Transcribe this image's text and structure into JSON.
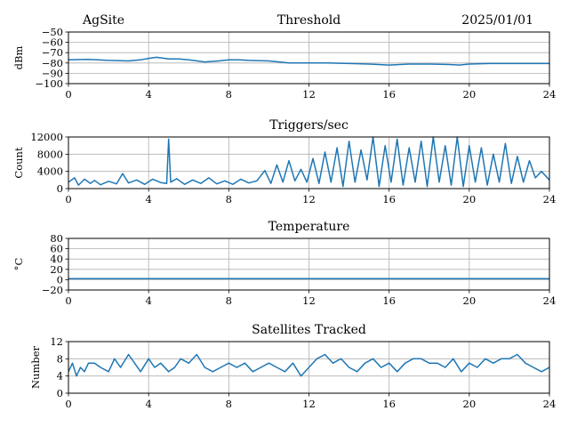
{
  "header": {
    "site": "AgSite",
    "date": "2025/01/01"
  },
  "colors": {
    "series": "#1f77b4",
    "grid": "#b0b0b0"
  },
  "chart_data": [
    {
      "type": "line",
      "title": "Threshold",
      "ylabel": "dBm",
      "xlabel": "",
      "xlim": [
        0,
        24
      ],
      "ylim": [
        -100,
        -50
      ],
      "xticks": [
        0,
        4,
        8,
        12,
        16,
        20,
        24
      ],
      "yticks": [
        -100,
        -90,
        -80,
        -70,
        -60,
        -50
      ],
      "ytick_labels": [
        "−100",
        "−90",
        "−80",
        "−70",
        "−60",
        "−50"
      ],
      "grid": true,
      "series": [
        {
          "x": [
            0,
            1,
            2,
            3,
            3.6,
            4,
            4.4,
            5,
            5.5,
            6,
            6.8,
            7.5,
            8,
            8.5,
            9,
            10,
            10.5,
            11,
            12,
            13,
            14,
            15,
            16,
            17,
            18,
            19,
            19.5,
            20,
            21,
            22,
            23,
            24
          ],
          "y": [
            -77,
            -76.5,
            -77.5,
            -78,
            -77,
            -75.5,
            -74.5,
            -76,
            -76,
            -77,
            -79,
            -78,
            -77,
            -77,
            -77.5,
            -78,
            -79,
            -80,
            -80,
            -80,
            -80.5,
            -81,
            -82,
            -81,
            -81,
            -81.5,
            -82,
            -81,
            -80.5,
            -80.5,
            -80.5,
            -80.5
          ]
        }
      ]
    },
    {
      "type": "line",
      "title": "Triggers/sec",
      "ylabel": "Count",
      "xlabel": "",
      "xlim": [
        0,
        24
      ],
      "ylim": [
        0,
        12000
      ],
      "xticks": [
        0,
        4,
        8,
        12,
        16,
        20,
        24
      ],
      "yticks": [
        0,
        4000,
        8000,
        12000
      ],
      "ytick_labels": [
        "0",
        "4000",
        "8000",
        "12000"
      ],
      "grid": true,
      "series": [
        {
          "x": [
            0,
            0.3,
            0.5,
            0.8,
            1.1,
            1.3,
            1.6,
            2,
            2.4,
            2.7,
            3,
            3.4,
            3.8,
            4.2,
            4.6,
            4.9,
            5,
            5.1,
            5.4,
            5.8,
            6.2,
            6.6,
            7,
            7.4,
            7.8,
            8.2,
            8.6,
            9,
            9.4,
            9.8,
            10.1,
            10.4,
            10.7,
            11,
            11.3,
            11.6,
            11.9,
            12.2,
            12.5,
            12.8,
            13.1,
            13.4,
            13.7,
            14,
            14.3,
            14.6,
            14.9,
            15.2,
            15.5,
            15.8,
            16.1,
            16.4,
            16.7,
            17,
            17.3,
            17.6,
            17.9,
            18.2,
            18.5,
            18.8,
            19.1,
            19.4,
            19.7,
            20,
            20.3,
            20.6,
            20.9,
            21.2,
            21.5,
            21.8,
            22.1,
            22.4,
            22.7,
            23,
            23.3,
            23.6,
            24
          ],
          "y": [
            1500,
            2500,
            800,
            2200,
            1200,
            1900,
            900,
            1700,
            1100,
            3500,
            1300,
            2000,
            1000,
            2200,
            1400,
            1200,
            11500,
            1500,
            2300,
            1000,
            2000,
            1200,
            2500,
            1100,
            1800,
            1000,
            2200,
            1300,
            1800,
            4200,
            1200,
            5500,
            1500,
            6500,
            1800,
            4500,
            1500,
            7000,
            1200,
            8500,
            1500,
            9500,
            500,
            11000,
            1500,
            9000,
            2000,
            12000,
            500,
            10000,
            1500,
            11500,
            800,
            9500,
            1500,
            11000,
            500,
            12000,
            1500,
            10000,
            800,
            12000,
            500,
            10000,
            1500,
            9500,
            800,
            8000,
            1500,
            10500,
            1200,
            7500,
            1500,
            6500,
            2500,
            4000,
            2000
          ]
        }
      ]
    },
    {
      "type": "line",
      "title": "Temperature",
      "ylabel": "°C",
      "xlabel": "",
      "xlim": [
        0,
        24
      ],
      "ylim": [
        -20,
        80
      ],
      "xticks": [
        0,
        4,
        8,
        12,
        16,
        20,
        24
      ],
      "yticks": [
        -20,
        0,
        20,
        40,
        60,
        80
      ],
      "ytick_labels": [
        "−20",
        "0",
        "20",
        "40",
        "60",
        "80"
      ],
      "grid": true,
      "series": [
        {
          "x": [
            0,
            24
          ],
          "y": [
            2,
            2
          ]
        }
      ]
    },
    {
      "type": "line",
      "title": "Satellites Tracked",
      "ylabel": "Number",
      "xlabel": "",
      "xlim": [
        0,
        24
      ],
      "ylim": [
        0,
        12
      ],
      "xticks": [
        0,
        4,
        8,
        12,
        16,
        20,
        24
      ],
      "yticks": [
        0,
        4,
        8,
        12
      ],
      "ytick_labels": [
        "0",
        "4",
        "8",
        "12"
      ],
      "grid": true,
      "series": [
        {
          "x": [
            0,
            0.2,
            0.4,
            0.6,
            0.8,
            1,
            1.3,
            1.6,
            2,
            2.3,
            2.6,
            3,
            3.3,
            3.6,
            4,
            4.3,
            4.6,
            5,
            5.3,
            5.6,
            6,
            6.4,
            6.8,
            7.2,
            7.6,
            8,
            8.4,
            8.8,
            9.2,
            9.6,
            10,
            10.4,
            10.8,
            11.2,
            11.6,
            12,
            12.4,
            12.8,
            13.2,
            13.6,
            14,
            14.4,
            14.8,
            15.2,
            15.6,
            16,
            16.4,
            16.8,
            17.2,
            17.6,
            18,
            18.4,
            18.8,
            19.2,
            19.6,
            20,
            20.4,
            20.8,
            21.2,
            21.6,
            22,
            22.4,
            22.8,
            23.2,
            23.6,
            24
          ],
          "y": [
            5,
            7,
            4,
            6,
            5,
            7,
            7,
            6,
            5,
            8,
            6,
            9,
            7,
            5,
            8,
            6,
            7,
            5,
            6,
            8,
            7,
            9,
            6,
            5,
            6,
            7,
            6,
            7,
            5,
            6,
            7,
            6,
            5,
            7,
            4,
            6,
            8,
            9,
            7,
            8,
            6,
            5,
            7,
            8,
            6,
            7,
            5,
            7,
            8,
            8,
            7,
            7,
            6,
            8,
            5,
            7,
            6,
            8,
            7,
            8,
            8,
            9,
            7,
            6,
            5,
            6
          ]
        }
      ]
    }
  ]
}
